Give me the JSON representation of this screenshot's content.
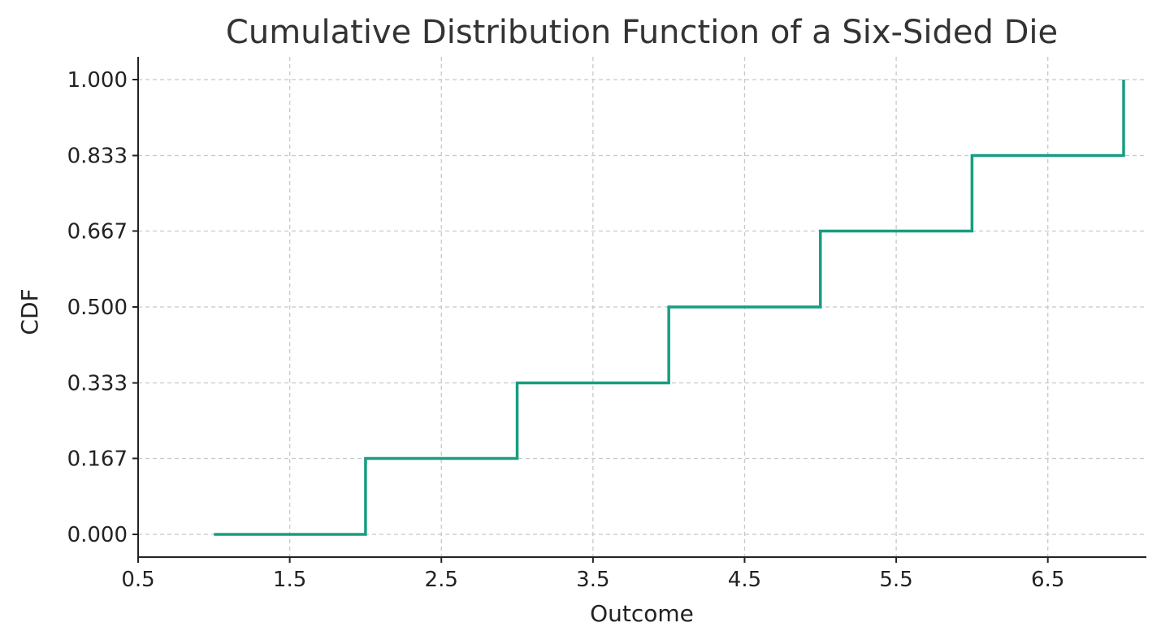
{
  "chart_data": {
    "type": "line",
    "title": "Cumulative Distribution Function of a Six-Sided Die",
    "xlabel": "Outcome",
    "ylabel": "CDF",
    "xlim": [
      0.5,
      7.15
    ],
    "ylim": [
      -0.05,
      1.05
    ],
    "x_ticks": [
      0.5,
      1.5,
      2.5,
      3.5,
      4.5,
      5.5,
      6.5
    ],
    "x_tick_labels": [
      "0.5",
      "1.5",
      "2.5",
      "3.5",
      "4.5",
      "5.5",
      "6.5"
    ],
    "y_ticks": [
      0.0,
      0.167,
      0.333,
      0.5,
      0.667,
      0.833,
      1.0
    ],
    "y_tick_labels": [
      "0.000",
      "0.167",
      "0.333",
      "0.500",
      "0.667",
      "0.833",
      "1.000"
    ],
    "grid": true,
    "step": "post",
    "series": [
      {
        "color": "#169e80",
        "points": [
          [
            1,
            0.0
          ],
          [
            2,
            0.0
          ],
          [
            2,
            0.167
          ],
          [
            3,
            0.167
          ],
          [
            3,
            0.333
          ],
          [
            4,
            0.333
          ],
          [
            4,
            0.5
          ],
          [
            5,
            0.5
          ],
          [
            5,
            0.667
          ],
          [
            6,
            0.667
          ],
          [
            6,
            0.833
          ],
          [
            7,
            0.833
          ],
          [
            7,
            1.0
          ]
        ]
      }
    ]
  }
}
